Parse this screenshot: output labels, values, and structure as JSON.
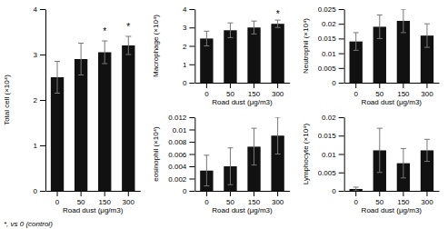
{
  "chart_data": [
    {
      "type": "bar",
      "categories": [
        "0",
        "50",
        "150",
        "300"
      ],
      "values": [
        2.5,
        2.9,
        3.05,
        3.2
      ],
      "errors": [
        0.35,
        0.35,
        0.25,
        0.2
      ],
      "color": "#111111",
      "xlabel": "Road dust (μg/m3)",
      "ylabel": "Total cell (×10⁴)",
      "ylim": [
        0,
        4
      ],
      "yticks": [
        0,
        1,
        2,
        3,
        4
      ],
      "annotations": [
        null,
        null,
        "*",
        "*"
      ],
      "grid": false
    },
    {
      "type": "bar",
      "categories": [
        "0",
        "50",
        "150",
        "300"
      ],
      "values": [
        2.4,
        2.85,
        3.0,
        3.2
      ],
      "errors": [
        0.4,
        0.4,
        0.35,
        0.2
      ],
      "color": "#111111",
      "xlabel": "Road dust (μg/m3)",
      "ylabel": "Macrophage (×10⁴)",
      "ylim": [
        0,
        4
      ],
      "yticks": [
        0,
        1,
        2,
        3,
        4
      ],
      "annotations": [
        null,
        null,
        null,
        "*"
      ],
      "grid": false
    },
    {
      "type": "bar",
      "categories": [
        "0",
        "50",
        "150",
        "300"
      ],
      "values": [
        0.014,
        0.019,
        0.021,
        0.016
      ],
      "errors": [
        0.003,
        0.004,
        0.004,
        0.004
      ],
      "color": "#111111",
      "xlabel": "Road dust (μg/m3)",
      "ylabel": "Neutrophil (×10⁴)",
      "ylim": [
        0,
        0.025
      ],
      "yticks": [
        0,
        0.005,
        0.01,
        0.015,
        0.02,
        0.025
      ],
      "grid": false
    },
    {
      "type": "bar",
      "categories": [
        "0",
        "50",
        "150",
        "300"
      ],
      "values": [
        0.0033,
        0.004,
        0.0072,
        0.009
      ],
      "errors": [
        0.0025,
        0.003,
        0.003,
        0.003
      ],
      "color": "#111111",
      "xlabel": "Road dust (μg/m3)",
      "ylabel": "eosinophil (×10⁴)",
      "ylim": [
        0,
        0.012
      ],
      "yticks": [
        0,
        0.002,
        0.004,
        0.006,
        0.008,
        0.01,
        0.012
      ],
      "grid": false
    },
    {
      "type": "bar",
      "categories": [
        "0",
        "50",
        "150",
        "300"
      ],
      "values": [
        0.0005,
        0.011,
        0.0075,
        0.011
      ],
      "errors": [
        0.0005,
        0.006,
        0.004,
        0.003
      ],
      "color": "#111111",
      "xlabel": "Road dust (μg/m3)",
      "ylabel": "Lymphocyte  (×10⁴)",
      "ylim": [
        0,
        0.02
      ],
      "yticks": [
        0,
        0.005,
        0.01,
        0.015,
        0.02
      ],
      "grid": false
    }
  ],
  "footnote": "*, vs 0 (control)"
}
